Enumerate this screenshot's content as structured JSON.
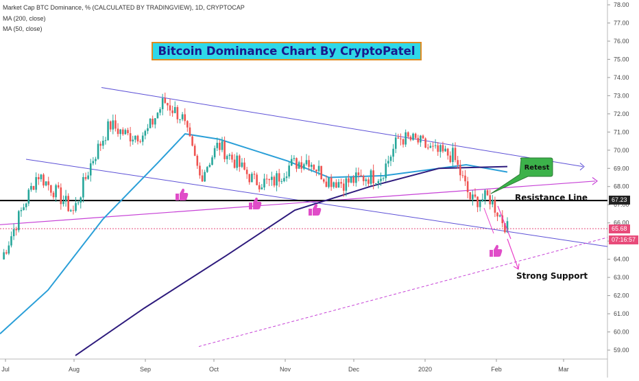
{
  "header": {
    "title": "Market Cap BTC Dominance, % (CALCULATED BY TRADINGVIEW), 1D, CRYPTOCAP",
    "ma200": "MA (200, close)",
    "ma50": "MA (50, close)"
  },
  "banner": "Bitcoin Dominance Chart By CryptoPatel",
  "annotations": {
    "resistance": "Resistance  Line",
    "support": "Strong Support",
    "retest": "Retest"
  },
  "price_tags": {
    "resistance_level": "67.23",
    "last_price": "65.68",
    "countdown": "07:16:57"
  },
  "colors": {
    "candle_up": "#26a69a",
    "candle_down": "#ef5350",
    "ma50": "#2a9fd8",
    "ma200": "#2d1a7c",
    "channel": "#5b4fd6",
    "trendline": "#c640d6",
    "arrow": "#e83ec8",
    "banner_bg": "#2fd8e8",
    "banner_border": "#e08a1e",
    "banner_text": "#1a1a8c",
    "retest_bubble": "#3cb24a",
    "price_tag": "#e84b7a",
    "resistance_tag": "#222222"
  },
  "icons": [
    "thumbs-up-icon",
    "thumbs-up-icon",
    "thumbs-up-icon",
    "thumbs-up-icon"
  ],
  "chart_data": {
    "type": "line",
    "title": "Market Cap BTC Dominance, % (CALCULATED BY TRADINGVIEW), 1D, CRYPTOCAP",
    "x_ticks": [
      "Jul",
      "Aug",
      "Sep",
      "Oct",
      "Nov",
      "Dec",
      "2020",
      "Feb",
      "Mar"
    ],
    "y_ticks": [
      "78.00",
      "77.00",
      "76.00",
      "75.00",
      "74.00",
      "73.00",
      "72.00",
      "71.00",
      "70.00",
      "69.00",
      "68.00",
      "67.00",
      "66.00",
      "65.00",
      "64.00",
      "63.00",
      "62.00",
      "61.00",
      "60.00",
      "59.00"
    ],
    "ylim": [
      58.6,
      78.2
    ],
    "grid": false,
    "series": [
      {
        "name": "Market Cap BTC Dominance",
        "x": [
          "Jul",
          "Jul",
          "Jul",
          "Jul",
          "Aug",
          "Aug",
          "Aug",
          "Aug",
          "Sep",
          "Sep",
          "Sep",
          "Sep",
          "Oct",
          "Oct",
          "Oct",
          "Oct",
          "Nov",
          "Nov",
          "Nov",
          "Nov",
          "Dec",
          "Dec",
          "Dec",
          "Dec",
          "2020",
          "2020",
          "2020",
          "2020",
          "Feb"
        ],
        "values": [
          64.0,
          66.4,
          68.7,
          67.7,
          66.6,
          69.4,
          71.4,
          70.8,
          70.9,
          72.7,
          71.8,
          68.5,
          70.3,
          69.3,
          68.3,
          68.2,
          69.2,
          69.5,
          68.4,
          68.2,
          68.5,
          68.6,
          70.7,
          70.5,
          69.9,
          69.7,
          67.2,
          67.4,
          65.68
        ]
      },
      {
        "name": "MA (50, close)",
        "x": [
          "Jul",
          "Aug",
          "Aug",
          "Sep",
          "Sep",
          "Oct",
          "Nov",
          "Nov",
          "Dec",
          "2020",
          "2020",
          "Feb"
        ],
        "values": [
          59.9,
          62.3,
          66.2,
          69.3,
          70.9,
          70.6,
          69.4,
          68.5,
          68.6,
          69.0,
          69.2,
          68.8
        ]
      },
      {
        "name": "MA (200, close)",
        "x": [
          "Aug",
          "Sep",
          "Oct",
          "Nov",
          "Dec",
          "2020",
          "Feb"
        ],
        "values": [
          58.7,
          61.3,
          64.2,
          66.7,
          68.0,
          69.0,
          69.1
        ]
      }
    ],
    "horizontal_line": {
      "value": 67.23,
      "label": "Resistance  Line"
    },
    "last_value": 65.68
  }
}
